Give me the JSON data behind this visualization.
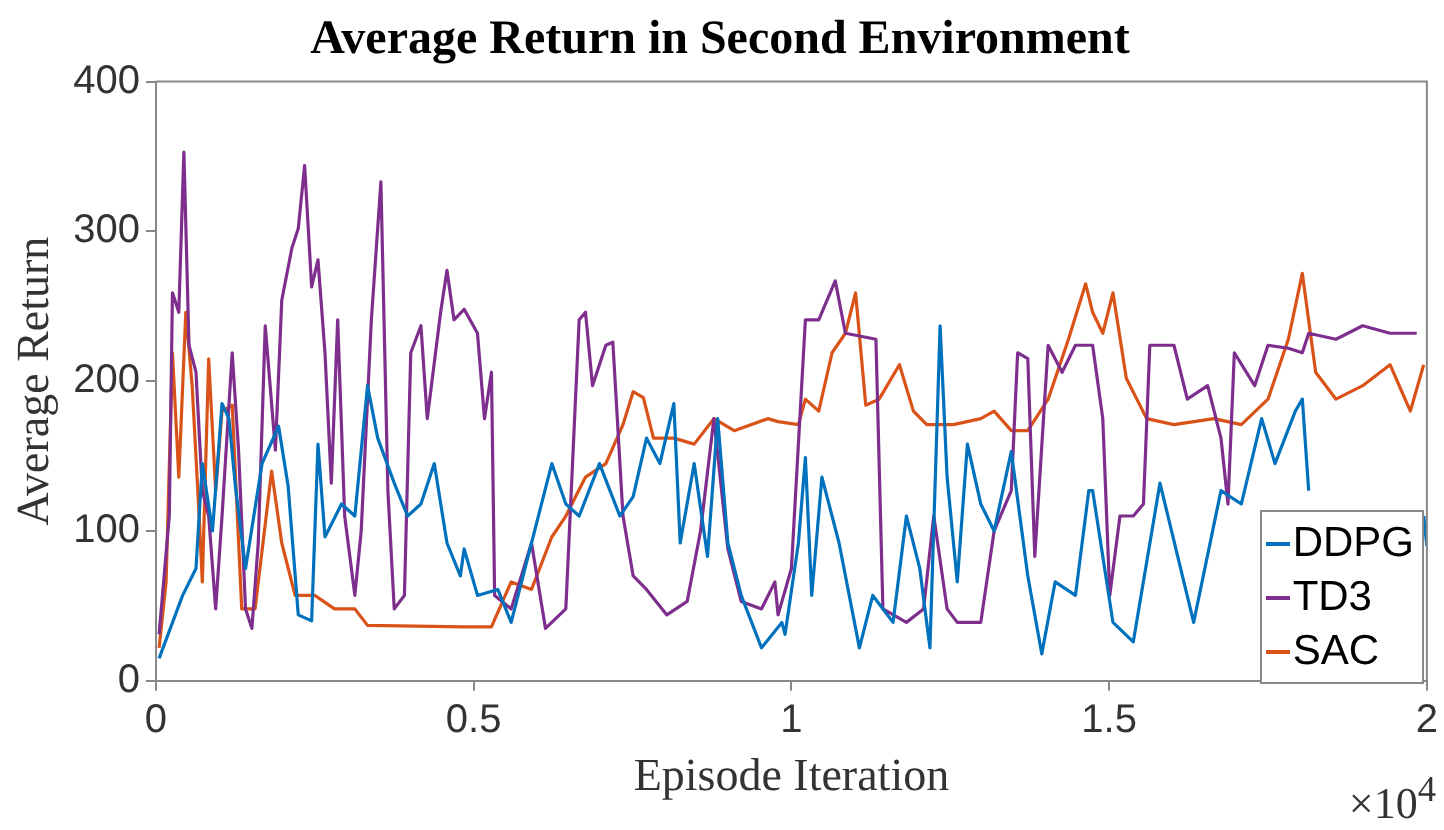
{
  "chart_data": {
    "type": "line",
    "title": "Average Return in Second Environment",
    "xlabel": "Episode Iteration",
    "ylabel": "Average Return",
    "xlim": [
      0,
      2
    ],
    "xticks": [
      0,
      0.5,
      1,
      1.5,
      2
    ],
    "ylim": [
      0,
      400
    ],
    "yticks": [
      0,
      100,
      200,
      300,
      400
    ],
    "grid": false,
    "legend": "bottom right",
    "marker": "none",
    "line_style": "solid",
    "annotations": [
      "×10$^{4}$"
    ],
    "series": [
      {
        "name": "DDPG",
        "color": "#0072bd",
        "x": [
          0.005,
          0.042,
          0.063,
          0.073,
          0.089,
          0.104,
          0.115,
          0.125,
          0.141,
          0.167,
          0.193,
          0.208,
          0.224,
          0.245,
          0.255,
          0.266,
          0.292,
          0.313,
          0.333,
          0.349,
          0.375,
          0.396,
          0.417,
          0.438,
          0.458,
          0.479,
          0.485,
          0.506,
          0.538,
          0.559,
          0.591,
          0.623,
          0.645,
          0.666,
          0.698,
          0.73,
          0.751,
          0.772,
          0.793,
          0.815,
          0.825,
          0.847,
          0.868,
          0.884,
          0.9,
          0.921,
          0.953,
          0.985,
          0.99,
          1.011,
          1.022,
          1.032,
          1.048,
          1.075,
          1.107,
          1.128,
          1.16,
          1.181,
          1.202,
          1.218,
          1.234,
          1.245,
          1.261,
          1.277,
          1.298,
          1.319,
          1.346,
          1.372,
          1.394,
          1.415,
          1.447,
          1.468,
          1.474,
          1.506,
          1.538,
          1.58,
          1.633,
          1.676,
          1.708,
          1.74,
          1.761,
          1.793,
          1.804,
          1.814,
          1.9,
          1.995,
          2
        ],
        "values": [
          15,
          57,
          75,
          145,
          100,
          185,
          175,
          130,
          75,
          145,
          170,
          130,
          44,
          40,
          158,
          96,
          118,
          110,
          197,
          162,
          132,
          110,
          118,
          145,
          92,
          70,
          88,
          57,
          61,
          39,
          92,
          145,
          118,
          110,
          145,
          110,
          123,
          162,
          145,
          185,
          92,
          145,
          83,
          175,
          92,
          57,
          22,
          39,
          31,
          92,
          149,
          57,
          136,
          92,
          22,
          57,
          39,
          110,
          75,
          22,
          237,
          136,
          66,
          158,
          118,
          100,
          153,
          70,
          18,
          66,
          57,
          127,
          127,
          39,
          26,
          132,
          39,
          127,
          118,
          175,
          145,
          180,
          188,
          127,
          null,
          110,
          90
        ]
      },
      {
        "name": "TD3",
        "color": "#7e2f8e",
        "x": [
          0.005,
          0.021,
          0.026,
          0.036,
          0.044,
          0.052,
          0.063,
          0.073,
          0.083,
          0.094,
          0.104,
          0.12,
          0.13,
          0.141,
          0.151,
          0.161,
          0.172,
          0.188,
          0.198,
          0.214,
          0.224,
          0.234,
          0.245,
          0.255,
          0.266,
          0.276,
          0.286,
          0.297,
          0.313,
          0.323,
          0.339,
          0.354,
          0.365,
          0.375,
          0.391,
          0.401,
          0.417,
          0.427,
          0.448,
          0.458,
          0.469,
          0.485,
          0.506,
          0.517,
          0.528,
          0.533,
          0.559,
          0.591,
          0.613,
          0.645,
          0.666,
          0.676,
          0.687,
          0.708,
          0.719,
          0.735,
          0.751,
          0.772,
          0.804,
          0.836,
          0.857,
          0.878,
          0.9,
          0.921,
          0.953,
          0.974,
          0.979,
          1.0,
          1.022,
          1.043,
          1.069,
          1.085,
          1.133,
          1.144,
          1.181,
          1.208,
          1.224,
          1.245,
          1.261,
          1.298,
          1.319,
          1.346,
          1.356,
          1.372,
          1.383,
          1.404,
          1.426,
          1.447,
          1.468,
          1.474,
          1.49,
          1.501,
          1.517,
          1.538,
          1.554,
          1.564,
          1.602,
          1.623,
          1.655,
          1.676,
          1.687,
          1.697,
          1.729,
          1.75,
          1.782,
          1.804,
          1.814,
          1.857,
          1.899,
          1.942,
          1.984
        ],
        "values": [
          31,
          110,
          259,
          246,
          353,
          224,
          206,
          127,
          110,
          48,
          110,
          219,
          154,
          48,
          35,
          92,
          237,
          154,
          254,
          289,
          302,
          344,
          263,
          281,
          219,
          132,
          241,
          110,
          57,
          100,
          241,
          333,
          127,
          48,
          57,
          219,
          237,
          175,
          246,
          274,
          241,
          248,
          232,
          175,
          206,
          57,
          48,
          92,
          35,
          48,
          241,
          246,
          197,
          224,
          226,
          110,
          70,
          61,
          44,
          53,
          100,
          175,
          88,
          53,
          48,
          66,
          44,
          75,
          241,
          241,
          267,
          232,
          228,
          48,
          39,
          48,
          110,
          48,
          39,
          39,
          100,
          127,
          219,
          215,
          83,
          224,
          206,
          224,
          224,
          224,
          175,
          57,
          110,
          110,
          118,
          224,
          224,
          188,
          197,
          162,
          118,
          219,
          197,
          224,
          222,
          219,
          232,
          228,
          237,
          232,
          232
        ]
      },
      {
        "name": "SAC",
        "color": "#d95319",
        "x": [
          0.005,
          0.016,
          0.026,
          0.036,
          0.047,
          0.057,
          0.068,
          0.073,
          0.083,
          0.094,
          0.104,
          0.12,
          0.135,
          0.156,
          0.182,
          0.198,
          0.219,
          0.25,
          0.281,
          0.313,
          0.333,
          0.485,
          0.528,
          0.559,
          0.591,
          0.623,
          0.645,
          0.676,
          0.708,
          0.735,
          0.751,
          0.767,
          0.783,
          0.815,
          0.847,
          0.878,
          0.91,
          0.963,
          0.979,
          1.011,
          1.022,
          1.043,
          1.064,
          1.085,
          1.101,
          1.117,
          1.138,
          1.17,
          1.192,
          1.213,
          1.255,
          1.298,
          1.319,
          1.346,
          1.372,
          1.404,
          1.436,
          1.463,
          1.474,
          1.49,
          1.506,
          1.527,
          1.559,
          1.602,
          1.665,
          1.708,
          1.75,
          1.782,
          1.804,
          1.825,
          1.857,
          1.899,
          1.942,
          1.974,
          1.995
        ],
        "values": [
          22,
          66,
          219,
          136,
          246,
          197,
          110,
          66,
          215,
          127,
          180,
          184,
          48,
          48,
          140,
          92,
          57,
          57,
          48,
          48,
          37,
          36,
          36,
          66,
          61,
          96,
          110,
          136,
          145,
          171,
          193,
          189,
          162,
          162,
          158,
          175,
          167,
          175,
          173,
          171,
          188,
          180,
          219,
          232,
          259,
          184,
          188,
          211,
          180,
          171,
          171,
          175,
          180,
          167,
          167,
          188,
          228,
          265,
          246,
          232,
          259,
          202,
          175,
          171,
          175,
          171,
          188,
          228,
          272,
          206,
          188,
          197,
          211,
          180,
          211
        ]
      }
    ]
  }
}
